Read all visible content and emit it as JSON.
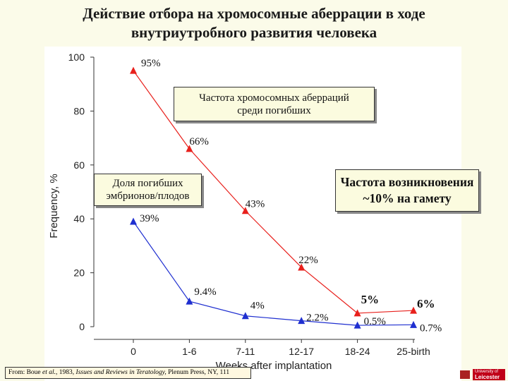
{
  "title": {
    "line1": "Действие отбора на хромосомные аберрации в ходе",
    "line2": "внутриутробного развития человека"
  },
  "chart_data": {
    "type": "line",
    "categories": [
      "0",
      "1-6",
      "7-11",
      "12-17",
      "18-24",
      "25-birth"
    ],
    "xlabel": "Weeks after implantation",
    "ylabel": "Frequency, %",
    "ylim": [
      0,
      100
    ],
    "yticks": [
      0,
      20,
      40,
      60,
      80,
      100
    ],
    "grid": false,
    "series": [
      {
        "key": "red",
        "color": "#e8201c",
        "marker": "triangle",
        "values": [
          95,
          66,
          43,
          22,
          5,
          6
        ],
        "labels": [
          "95%",
          "66%",
          "43%",
          "22%",
          "5%",
          "6%"
        ]
      },
      {
        "key": "blue",
        "color": "#1f2fd0",
        "marker": "triangle",
        "values": [
          39,
          9.4,
          4,
          2.2,
          0.5,
          0.7
        ],
        "labels": [
          "39%",
          "9.4%",
          "4%",
          "2.2%",
          "0.5%",
          "0.7%"
        ]
      }
    ],
    "annotations": {
      "red_box": [
        "Частота хромосомных аберраций",
        "среди погибших"
      ],
      "blue_box": [
        "Доля погибших",
        "эмбрионов/плодов"
      ],
      "right_box": [
        "Частота возникновения",
        "~10% на гамету"
      ]
    }
  },
  "citation": {
    "prefix": "From: Boue ",
    "etal": "et al.",
    "mid": ", 1983, ",
    "journal": "Issues and Reviews in Teratology,",
    "suffix": " Plenum Press, NY, 111"
  },
  "logo": {
    "line1": "University of",
    "line2": "Leicester"
  }
}
